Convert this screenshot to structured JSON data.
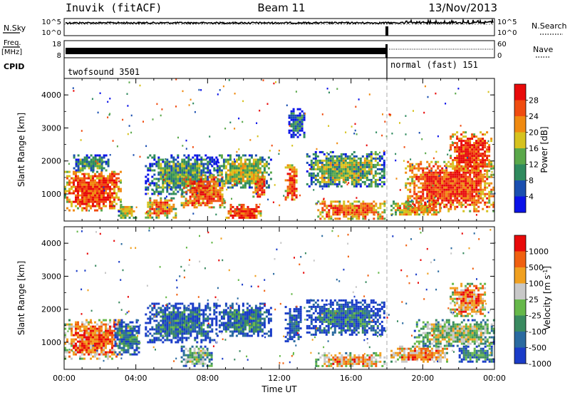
{
  "header": {
    "station": "Inuvik (fitACF)",
    "beam": "Beam 11",
    "date": "13/Nov/2013"
  },
  "strip_nsky": {
    "left_label": "N.Sky",
    "right_label": "N.Search",
    "left_ticks": [
      "10^5",
      "10^0"
    ],
    "right_ticks": [
      "10^5",
      "10^0"
    ]
  },
  "strip_freq": {
    "left_label_top": "Freq.",
    "left_label_units": "[MHz]",
    "right_label": "Nave",
    "left_ticks": [
      "18",
      "8"
    ],
    "right_ticks": [
      "60",
      "0"
    ]
  },
  "cpid": {
    "label": "CPID",
    "segments": [
      {
        "name": "twofsound 3501",
        "start_hour": 0,
        "end_hour": 18.1
      },
      {
        "name": "normal (fast) 151",
        "start_hour": 18.1,
        "end_hour": 24
      }
    ]
  },
  "chart_data": [
    {
      "type": "heatmap",
      "name": "power-panel",
      "xlabel": "",
      "ylabel": "Slant Range [km]",
      "ylim": [
        180,
        4500
      ],
      "xlim": [
        0,
        24
      ],
      "yticks": [
        "1000",
        "2000",
        "3000",
        "4000"
      ],
      "colorbar": {
        "label": "Power [dB]",
        "ticks": [
          "4",
          "8",
          "12",
          "16",
          "20",
          "24",
          "28"
        ],
        "range": [
          0,
          32
        ],
        "colors": [
          "#0a12e8",
          "#1a4fb0",
          "#2f8a5e",
          "#5aa84a",
          "#d6c21e",
          "#f08a10",
          "#f04c10",
          "#e80a0a"
        ]
      },
      "echo_regions": [
        {
          "t0": 0.0,
          "t1": 3.2,
          "r0": 500,
          "r1": 1700,
          "level": 0.85
        },
        {
          "t0": 0.5,
          "t1": 2.5,
          "r0": 1700,
          "r1": 2200,
          "level": 0.35
        },
        {
          "t0": 3.0,
          "t1": 4.0,
          "r0": 250,
          "r1": 700,
          "level": 0.55
        },
        {
          "t0": 4.5,
          "t1": 6.2,
          "r0": 300,
          "r1": 900,
          "level": 0.7
        },
        {
          "t0": 4.5,
          "t1": 8.5,
          "r0": 1000,
          "r1": 2200,
          "level": 0.35
        },
        {
          "t0": 6.5,
          "t1": 9.0,
          "r0": 600,
          "r1": 1600,
          "level": 0.8
        },
        {
          "t0": 8.5,
          "t1": 11.5,
          "r0": 1200,
          "r1": 2200,
          "level": 0.5
        },
        {
          "t0": 9.0,
          "t1": 11.0,
          "r0": 250,
          "r1": 700,
          "level": 0.9
        },
        {
          "t0": 10.5,
          "t1": 11.2,
          "r0": 900,
          "r1": 1600,
          "level": 0.85
        },
        {
          "t0": 12.3,
          "t1": 13.0,
          "r0": 800,
          "r1": 1900,
          "level": 0.85
        },
        {
          "t0": 12.5,
          "t1": 13.4,
          "r0": 2700,
          "r1": 3600,
          "level": 0.25
        },
        {
          "t0": 13.5,
          "t1": 17.9,
          "r0": 1200,
          "r1": 2300,
          "level": 0.45
        },
        {
          "t0": 14.0,
          "t1": 17.9,
          "r0": 250,
          "r1": 800,
          "level": 0.8
        },
        {
          "t0": 18.2,
          "t1": 21.0,
          "r0": 350,
          "r1": 800,
          "level": 0.7
        },
        {
          "t0": 19.0,
          "t1": 24.0,
          "r0": 500,
          "r1": 2000,
          "level": 0.85
        },
        {
          "t0": 21.5,
          "t1": 23.8,
          "r0": 1700,
          "r1": 2900,
          "level": 0.9
        }
      ]
    },
    {
      "type": "heatmap",
      "name": "velocity-panel",
      "xlabel": "Time UT",
      "ylabel": "Slant Range [km]",
      "ylim": [
        180,
        4500
      ],
      "xlim": [
        0,
        24
      ],
      "yticks": [
        "1000",
        "2000",
        "3000",
        "4000"
      ],
      "xticks": [
        "00:00",
        "04:00",
        "08:00",
        "12:00",
        "16:00",
        "20:00",
        "00:00"
      ],
      "colorbar": {
        "label": "Velocity [m s-1]",
        "label_parts": [
          "Velocity [m s",
          "-1",
          "]"
        ],
        "ticks": [
          "1000",
          "500",
          "100",
          "25",
          "-25",
          "-100",
          "-500",
          "-1000"
        ],
        "colors": [
          "#1a3cc8",
          "#2a6aa0",
          "#3a8a60",
          "#66b84a",
          "#c8c8c8",
          "#f0a020",
          "#f06010",
          "#e80a0a"
        ]
      },
      "echo_regions": [
        {
          "t0": 0.0,
          "t1": 3.2,
          "r0": 500,
          "r1": 1700,
          "level": 0.8
        },
        {
          "t0": 2.8,
          "t1": 4.2,
          "r0": 600,
          "r1": 1700,
          "level": 0.25
        },
        {
          "t0": 4.5,
          "t1": 8.5,
          "r0": 1000,
          "r1": 2200,
          "level": 0.2
        },
        {
          "t0": 6.5,
          "t1": 8.2,
          "r0": 300,
          "r1": 900,
          "level": 0.45
        },
        {
          "t0": 8.5,
          "t1": 11.5,
          "r0": 1200,
          "r1": 2200,
          "level": 0.22
        },
        {
          "t0": 12.3,
          "t1": 13.2,
          "r0": 1000,
          "r1": 2100,
          "level": 0.12
        },
        {
          "t0": 13.5,
          "t1": 17.9,
          "r0": 1200,
          "r1": 2300,
          "level": 0.2
        },
        {
          "t0": 14.0,
          "t1": 17.9,
          "r0": 250,
          "r1": 700,
          "level": 0.7
        },
        {
          "t0": 18.2,
          "t1": 21.5,
          "r0": 400,
          "r1": 900,
          "level": 0.75
        },
        {
          "t0": 19.5,
          "t1": 24.0,
          "r0": 900,
          "r1": 1700,
          "level": 0.5
        },
        {
          "t0": 21.5,
          "t1": 23.5,
          "r0": 1800,
          "r1": 2800,
          "level": 0.78
        },
        {
          "t0": 22.0,
          "t1": 24.0,
          "r0": 400,
          "r1": 900,
          "level": 0.3
        }
      ]
    }
  ]
}
